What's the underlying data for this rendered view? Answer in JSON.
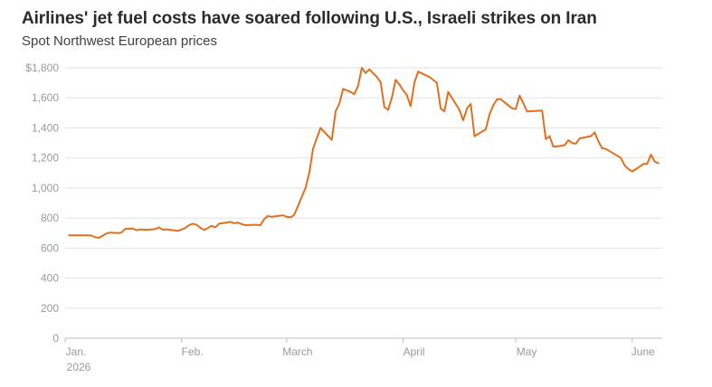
{
  "title": "Airlines' jet fuel costs have soared following U.S., Israeli strikes on Iran",
  "subtitle": "Spot Northwest European prices",
  "line_color": "#E07020",
  "chart_data": {
    "type": "line",
    "title": "Airlines' jet fuel costs have soared following U.S., Israeli strikes on Iran",
    "subtitle": "Spot Northwest European prices",
    "xlabel": "",
    "ylabel": "",
    "ylim": [
      0,
      1800
    ],
    "y_ticks": [
      {
        "value": 0,
        "label": "0"
      },
      {
        "value": 200,
        "label": "200"
      },
      {
        "value": 400,
        "label": "400"
      },
      {
        "value": 600,
        "label": "600"
      },
      {
        "value": 800,
        "label": "800"
      },
      {
        "value": 1000,
        "label": "1,000"
      },
      {
        "value": 1200,
        "label": "1,200"
      },
      {
        "value": 1400,
        "label": "1,400"
      },
      {
        "value": 1600,
        "label": "1,600"
      },
      {
        "value": 1800,
        "label": "$1,800"
      }
    ],
    "x_ticks": [
      {
        "date": "2026-01-01",
        "label": "Jan.",
        "sublabel": "2026"
      },
      {
        "date": "2026-02-01",
        "label": "Feb."
      },
      {
        "date": "2026-03-01",
        "label": "March"
      },
      {
        "date": "2026-04-01",
        "label": "April"
      },
      {
        "date": "2026-05-01",
        "label": "May"
      },
      {
        "date": "2026-06-01",
        "label": "June"
      }
    ],
    "x_range": [
      "2026-01-01",
      "2026-06-09"
    ],
    "grid": "horizontal",
    "series": [
      {
        "color": "#E07020",
        "points": [
          [
            "2026-01-02",
            685
          ],
          [
            "2026-01-05",
            685
          ],
          [
            "2026-01-07",
            685
          ],
          [
            "2026-01-08",
            683
          ],
          [
            "2026-01-09",
            672
          ],
          [
            "2026-01-10",
            668
          ],
          [
            "2026-01-12",
            697
          ],
          [
            "2026-01-13",
            703
          ],
          [
            "2026-01-15",
            700
          ],
          [
            "2026-01-16",
            703
          ],
          [
            "2026-01-17",
            728
          ],
          [
            "2026-01-19",
            730
          ],
          [
            "2026-01-20",
            719
          ],
          [
            "2026-01-21",
            724
          ],
          [
            "2026-01-23",
            722
          ],
          [
            "2026-01-25",
            726
          ],
          [
            "2026-01-26",
            738
          ],
          [
            "2026-01-27",
            722
          ],
          [
            "2026-01-28",
            725
          ],
          [
            "2026-01-30",
            718
          ],
          [
            "2026-01-31",
            714
          ],
          [
            "2026-02-02",
            733
          ],
          [
            "2026-02-03",
            753
          ],
          [
            "2026-02-04",
            762
          ],
          [
            "2026-02-05",
            755
          ],
          [
            "2026-02-06",
            735
          ],
          [
            "2026-02-07",
            720
          ],
          [
            "2026-02-08",
            733
          ],
          [
            "2026-02-09",
            748
          ],
          [
            "2026-02-10",
            738
          ],
          [
            "2026-02-11",
            762
          ],
          [
            "2026-02-13",
            770
          ],
          [
            "2026-02-14",
            775
          ],
          [
            "2026-02-15",
            765
          ],
          [
            "2026-02-16",
            770
          ],
          [
            "2026-02-17",
            760
          ],
          [
            "2026-02-18",
            752
          ],
          [
            "2026-02-20",
            755
          ],
          [
            "2026-02-21",
            755
          ],
          [
            "2026-02-22",
            752
          ],
          [
            "2026-02-23",
            793
          ],
          [
            "2026-02-24",
            814
          ],
          [
            "2026-02-25",
            808
          ],
          [
            "2026-02-26",
            812
          ],
          [
            "2026-02-28",
            818
          ],
          [
            "2026-03-01",
            808
          ],
          [
            "2026-03-02",
            804
          ],
          [
            "2026-03-03",
            822
          ],
          [
            "2026-03-04",
            880
          ],
          [
            "2026-03-05",
            940
          ],
          [
            "2026-03-06",
            1000
          ],
          [
            "2026-03-07",
            1100
          ],
          [
            "2026-03-08",
            1260
          ],
          [
            "2026-03-09",
            1330
          ],
          [
            "2026-03-10",
            1400
          ],
          [
            "2026-03-13",
            1320
          ],
          [
            "2026-03-14",
            1510
          ],
          [
            "2026-03-15",
            1560
          ],
          [
            "2026-03-16",
            1660
          ],
          [
            "2026-03-18",
            1640
          ],
          [
            "2026-03-19",
            1625
          ],
          [
            "2026-03-20",
            1680
          ],
          [
            "2026-03-21",
            1800
          ],
          [
            "2026-03-22",
            1765
          ],
          [
            "2026-03-23",
            1790
          ],
          [
            "2026-03-25",
            1740
          ],
          [
            "2026-03-26",
            1705
          ],
          [
            "2026-03-27",
            1540
          ],
          [
            "2026-03-28",
            1520
          ],
          [
            "2026-03-29",
            1600
          ],
          [
            "2026-03-30",
            1720
          ],
          [
            "2026-03-31",
            1690
          ],
          [
            "2026-04-01",
            1650
          ],
          [
            "2026-04-02",
            1620
          ],
          [
            "2026-04-03",
            1545
          ],
          [
            "2026-04-04",
            1700
          ],
          [
            "2026-04-05",
            1775
          ],
          [
            "2026-04-07",
            1750
          ],
          [
            "2026-04-08",
            1740
          ],
          [
            "2026-04-10",
            1700
          ],
          [
            "2026-04-11",
            1530
          ],
          [
            "2026-04-12",
            1510
          ],
          [
            "2026-04-13",
            1640
          ],
          [
            "2026-04-14",
            1600
          ],
          [
            "2026-04-16",
            1520
          ],
          [
            "2026-04-17",
            1450
          ],
          [
            "2026-04-18",
            1530
          ],
          [
            "2026-04-19",
            1560
          ],
          [
            "2026-04-20",
            1345
          ],
          [
            "2026-04-21",
            1360
          ],
          [
            "2026-04-23",
            1390
          ],
          [
            "2026-04-24",
            1490
          ],
          [
            "2026-04-25",
            1550
          ],
          [
            "2026-04-26",
            1590
          ],
          [
            "2026-04-27",
            1592
          ],
          [
            "2026-04-28",
            1570
          ],
          [
            "2026-04-30",
            1530
          ],
          [
            "2026-05-01",
            1525
          ],
          [
            "2026-05-02",
            1615
          ],
          [
            "2026-05-03",
            1565
          ],
          [
            "2026-05-04",
            1510
          ],
          [
            "2026-05-06",
            1512
          ],
          [
            "2026-05-08",
            1515
          ],
          [
            "2026-05-09",
            1325
          ],
          [
            "2026-05-10",
            1345
          ],
          [
            "2026-05-11",
            1275
          ],
          [
            "2026-05-13",
            1280
          ],
          [
            "2026-05-14",
            1285
          ],
          [
            "2026-05-15",
            1318
          ],
          [
            "2026-05-16",
            1300
          ],
          [
            "2026-05-17",
            1295
          ],
          [
            "2026-05-18",
            1330
          ],
          [
            "2026-05-20",
            1340
          ],
          [
            "2026-05-21",
            1345
          ],
          [
            "2026-05-22",
            1370
          ],
          [
            "2026-05-23",
            1310
          ],
          [
            "2026-05-24",
            1265
          ],
          [
            "2026-05-25",
            1260
          ],
          [
            "2026-05-26",
            1245
          ],
          [
            "2026-05-28",
            1215
          ],
          [
            "2026-05-29",
            1200
          ],
          [
            "2026-05-30",
            1150
          ],
          [
            "2026-05-31",
            1125
          ],
          [
            "2026-06-01",
            1110
          ],
          [
            "2026-06-02",
            1125
          ],
          [
            "2026-06-04",
            1160
          ],
          [
            "2026-06-05",
            1160
          ],
          [
            "2026-06-06",
            1222
          ],
          [
            "2026-06-07",
            1175
          ],
          [
            "2026-06-08",
            1165
          ]
        ]
      }
    ]
  }
}
